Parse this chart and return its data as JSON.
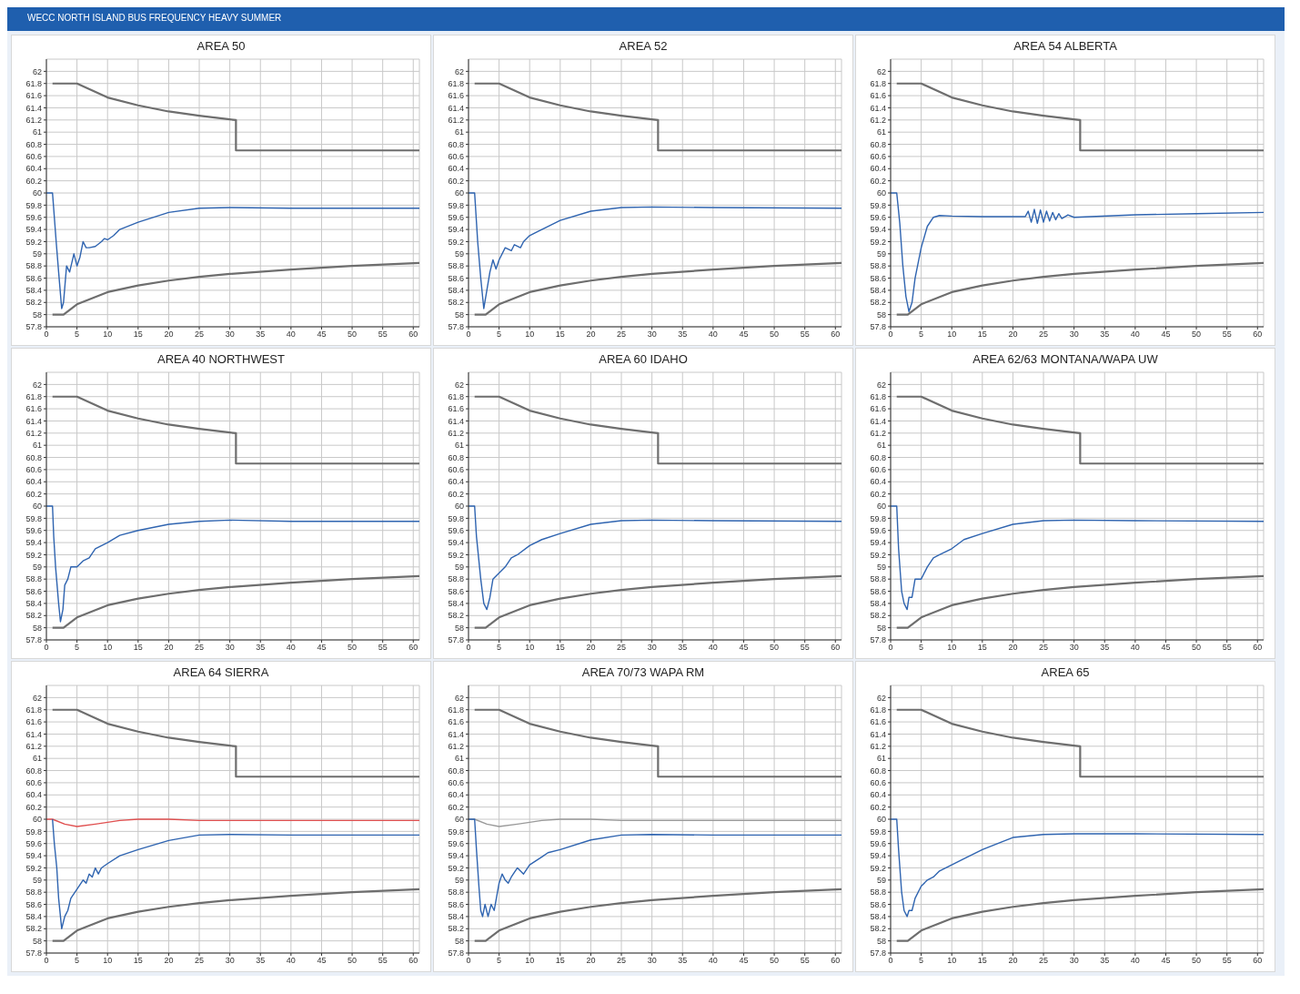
{
  "chart_data": [
    {
      "type": "line",
      "title": "AREA 50",
      "annotations": [
        "WECC NORTH ISLAND BUS FREQUENCY HEAVY SUMMER"
      ],
      "xlim": [
        0,
        61
      ],
      "xticks": [
        0,
        5,
        10,
        15,
        20,
        25,
        30,
        35,
        40,
        45,
        50,
        55,
        60
      ],
      "ylim": [
        57.8,
        62.2
      ],
      "yticks": [
        57.8,
        58,
        58.2,
        58.4,
        58.6,
        58.8,
        59,
        59.2,
        59.4,
        59.6,
        59.8,
        60,
        60.2,
        60.4,
        60.6,
        60.8,
        61,
        61.2,
        61.4,
        61.6,
        61.8,
        62
      ],
      "grid": true,
      "legend": false,
      "marker": "none",
      "line_style": "solid",
      "series": [
        {
          "color": "#6e6e6e",
          "x": [
            1,
            5,
            10,
            15,
            20,
            25,
            30,
            31,
            31,
            61
          ],
          "values": [
            61.8,
            61.8,
            61.57,
            61.44,
            61.34,
            61.27,
            61.21,
            61.2,
            60.7,
            60.7
          ]
        },
        {
          "color": "#6e6e6e",
          "x": [
            1,
            2.8,
            5,
            10,
            15,
            20,
            25,
            30,
            40,
            50,
            61
          ],
          "values": [
            58,
            58,
            58.17,
            58.37,
            58.48,
            58.56,
            58.62,
            58.67,
            58.74,
            58.8,
            58.85
          ]
        },
        {
          "color": "#2f64b0",
          "x": [
            0,
            1,
            1.3,
            1.6,
            2,
            2.5,
            2.8,
            3.3,
            3.8,
            4.5,
            5,
            5.5,
            6,
            6.5,
            7,
            8,
            9,
            9.5,
            10,
            11,
            12,
            15,
            20,
            25,
            30,
            40,
            61
          ],
          "values": [
            60,
            60,
            59.6,
            59.2,
            58.7,
            58.1,
            58.2,
            58.8,
            58.7,
            59,
            58.8,
            58.95,
            59.2,
            59.1,
            59.1,
            59.12,
            59.2,
            59.25,
            59.23,
            59.3,
            59.4,
            59.52,
            59.68,
            59.75,
            59.76,
            59.75,
            59.75
          ]
        }
      ]
    },
    {
      "type": "line",
      "title": "AREA 52",
      "xlim": [
        0,
        61
      ],
      "xticks": [
        0,
        5,
        10,
        15,
        20,
        25,
        30,
        35,
        40,
        45,
        50,
        55,
        60
      ],
      "ylim": [
        57.8,
        62.2
      ],
      "yticks": [
        57.8,
        58,
        58.2,
        58.4,
        58.6,
        58.8,
        59,
        59.2,
        59.4,
        59.6,
        59.8,
        60,
        60.2,
        60.4,
        60.6,
        60.8,
        61,
        61.2,
        61.4,
        61.6,
        61.8,
        62
      ],
      "grid": true,
      "legend": false,
      "marker": "none",
      "line_style": "solid",
      "series": [
        {
          "color": "#6e6e6e",
          "x": [
            1,
            5,
            10,
            15,
            20,
            25,
            30,
            31,
            31,
            61
          ],
          "values": [
            61.8,
            61.8,
            61.57,
            61.44,
            61.34,
            61.27,
            61.21,
            61.2,
            60.7,
            60.7
          ]
        },
        {
          "color": "#6e6e6e",
          "x": [
            1,
            2.8,
            5,
            10,
            15,
            20,
            25,
            30,
            40,
            50,
            61
          ],
          "values": [
            58,
            58,
            58.17,
            58.37,
            58.48,
            58.56,
            58.62,
            58.67,
            58.74,
            58.8,
            58.85
          ]
        },
        {
          "color": "#2f64b0",
          "x": [
            0,
            1,
            1.5,
            2,
            2.5,
            3,
            3.5,
            4,
            4.5,
            5,
            6,
            7,
            7.5,
            8.5,
            9,
            10,
            12,
            15,
            20,
            25,
            30,
            40,
            61
          ],
          "values": [
            60,
            60,
            59.2,
            58.6,
            58.1,
            58.4,
            58.7,
            58.9,
            58.75,
            58.9,
            59.1,
            59.05,
            59.15,
            59.1,
            59.2,
            59.3,
            59.4,
            59.55,
            59.7,
            59.76,
            59.77,
            59.76,
            59.75
          ]
        }
      ]
    },
    {
      "type": "line",
      "title": "AREA 54 ALBERTA",
      "xlim": [
        0,
        61
      ],
      "xticks": [
        0,
        5,
        10,
        15,
        20,
        25,
        30,
        35,
        40,
        45,
        50,
        55,
        60
      ],
      "ylim": [
        57.8,
        62.2
      ],
      "yticks": [
        57.8,
        58,
        58.2,
        58.4,
        58.6,
        58.8,
        59,
        59.2,
        59.4,
        59.6,
        59.8,
        60,
        60.2,
        60.4,
        60.6,
        60.8,
        61,
        61.2,
        61.4,
        61.6,
        61.8,
        62
      ],
      "grid": true,
      "legend": false,
      "marker": "none",
      "line_style": "solid",
      "series": [
        {
          "color": "#6e6e6e",
          "x": [
            1,
            5,
            10,
            15,
            20,
            25,
            30,
            31,
            31,
            61
          ],
          "values": [
            61.8,
            61.8,
            61.57,
            61.44,
            61.34,
            61.27,
            61.21,
            61.2,
            60.7,
            60.7
          ]
        },
        {
          "color": "#6e6e6e",
          "x": [
            1,
            2.8,
            5,
            10,
            15,
            20,
            25,
            30,
            40,
            50,
            61
          ],
          "values": [
            58,
            58,
            58.17,
            58.37,
            58.48,
            58.56,
            58.62,
            58.67,
            58.74,
            58.8,
            58.85
          ]
        },
        {
          "color": "#2f64b0",
          "x": [
            0,
            1,
            1.5,
            2,
            2.5,
            3,
            3.5,
            4,
            5,
            6,
            7,
            8,
            10,
            15,
            20,
            22,
            22.5,
            23,
            23.5,
            24,
            24.5,
            25,
            25.5,
            26,
            26.5,
            27,
            27.5,
            28,
            29,
            30,
            40,
            50,
            61
          ],
          "values": [
            60,
            60,
            59.5,
            58.8,
            58.3,
            58.05,
            58.2,
            58.6,
            59.1,
            59.45,
            59.6,
            59.63,
            59.62,
            59.61,
            59.61,
            59.61,
            59.7,
            59.52,
            59.73,
            59.5,
            59.72,
            59.52,
            59.7,
            59.54,
            59.68,
            59.56,
            59.66,
            59.58,
            59.64,
            59.6,
            59.64,
            59.66,
            59.68
          ]
        }
      ]
    },
    {
      "type": "line",
      "title": "AREA 40 NORTHWEST",
      "xlim": [
        0,
        61
      ],
      "xticks": [
        0,
        5,
        10,
        15,
        20,
        25,
        30,
        35,
        40,
        45,
        50,
        55,
        60
      ],
      "ylim": [
        57.8,
        62.2
      ],
      "yticks": [
        57.8,
        58,
        58.2,
        58.4,
        58.6,
        58.8,
        59,
        59.2,
        59.4,
        59.6,
        59.8,
        60,
        60.2,
        60.4,
        60.6,
        60.8,
        61,
        61.2,
        61.4,
        61.6,
        61.8,
        62
      ],
      "grid": true,
      "legend": false,
      "marker": "none",
      "line_style": "solid",
      "series": [
        {
          "color": "#6e6e6e",
          "x": [
            1,
            5,
            10,
            15,
            20,
            25,
            30,
            31,
            31,
            61
          ],
          "values": [
            61.8,
            61.8,
            61.57,
            61.44,
            61.34,
            61.27,
            61.21,
            61.2,
            60.7,
            60.7
          ]
        },
        {
          "color": "#6e6e6e",
          "x": [
            1,
            2.8,
            5,
            10,
            15,
            20,
            25,
            30,
            40,
            50,
            61
          ],
          "values": [
            58,
            58,
            58.17,
            58.37,
            58.48,
            58.56,
            58.62,
            58.67,
            58.74,
            58.8,
            58.85
          ]
        },
        {
          "color": "#2f64b0",
          "x": [
            0,
            1,
            1.2,
            1.5,
            2,
            2.3,
            2.7,
            3,
            3.5,
            4,
            5,
            6,
            7,
            8,
            10,
            12,
            15,
            20,
            25,
            30,
            40,
            61
          ],
          "values": [
            60,
            60,
            59.5,
            59,
            58.4,
            58.1,
            58.3,
            58.7,
            58.8,
            59,
            59,
            59.1,
            59.15,
            59.3,
            59.4,
            59.52,
            59.6,
            59.7,
            59.75,
            59.77,
            59.75,
            59.75
          ]
        }
      ]
    },
    {
      "type": "line",
      "title": "AREA 60 IDAHO",
      "xlim": [
        0,
        61
      ],
      "xticks": [
        0,
        5,
        10,
        15,
        20,
        25,
        30,
        35,
        40,
        45,
        50,
        55,
        60
      ],
      "ylim": [
        57.8,
        62.2
      ],
      "yticks": [
        57.8,
        58,
        58.2,
        58.4,
        58.6,
        58.8,
        59,
        59.2,
        59.4,
        59.6,
        59.8,
        60,
        60.2,
        60.4,
        60.6,
        60.8,
        61,
        61.2,
        61.4,
        61.6,
        61.8,
        62
      ],
      "grid": true,
      "legend": false,
      "marker": "none",
      "line_style": "solid",
      "series": [
        {
          "color": "#6e6e6e",
          "x": [
            1,
            5,
            10,
            15,
            20,
            25,
            30,
            31,
            31,
            61
          ],
          "values": [
            61.8,
            61.8,
            61.57,
            61.44,
            61.34,
            61.27,
            61.21,
            61.2,
            60.7,
            60.7
          ]
        },
        {
          "color": "#6e6e6e",
          "x": [
            1,
            2.8,
            5,
            10,
            15,
            20,
            25,
            30,
            40,
            50,
            61
          ],
          "values": [
            58,
            58,
            58.17,
            58.37,
            58.48,
            58.56,
            58.62,
            58.67,
            58.74,
            58.8,
            58.85
          ]
        },
        {
          "color": "#2f64b0",
          "x": [
            0,
            1,
            1.3,
            2,
            2.5,
            3,
            3.5,
            4,
            5,
            6,
            7,
            8,
            10,
            12,
            15,
            20,
            25,
            30,
            40,
            61
          ],
          "values": [
            60,
            60,
            59.5,
            58.8,
            58.4,
            58.3,
            58.5,
            58.8,
            58.9,
            59,
            59.15,
            59.2,
            59.35,
            59.45,
            59.55,
            59.7,
            59.76,
            59.77,
            59.76,
            59.75
          ]
        }
      ]
    },
    {
      "type": "line",
      "title": "AREA 62/63 MONTANA/WAPA UW",
      "xlim": [
        0,
        61
      ],
      "xticks": [
        0,
        5,
        10,
        15,
        20,
        25,
        30,
        35,
        40,
        45,
        50,
        55,
        60
      ],
      "ylim": [
        57.8,
        62.2
      ],
      "yticks": [
        57.8,
        58,
        58.2,
        58.4,
        58.6,
        58.8,
        59,
        59.2,
        59.4,
        59.6,
        59.8,
        60,
        60.2,
        60.4,
        60.6,
        60.8,
        61,
        61.2,
        61.4,
        61.6,
        61.8,
        62
      ],
      "grid": true,
      "legend": false,
      "marker": "none",
      "line_style": "solid",
      "series": [
        {
          "color": "#6e6e6e",
          "x": [
            1,
            5,
            10,
            15,
            20,
            25,
            30,
            31,
            31,
            61
          ],
          "values": [
            61.8,
            61.8,
            61.57,
            61.44,
            61.34,
            61.27,
            61.21,
            61.2,
            60.7,
            60.7
          ]
        },
        {
          "color": "#6e6e6e",
          "x": [
            1,
            2.8,
            5,
            10,
            15,
            20,
            25,
            30,
            40,
            50,
            61
          ],
          "values": [
            58,
            58,
            58.17,
            58.37,
            58.48,
            58.56,
            58.62,
            58.67,
            58.74,
            58.8,
            58.85
          ]
        },
        {
          "color": "#2f64b0",
          "x": [
            0,
            1,
            1.3,
            1.8,
            2.2,
            2.7,
            3,
            3.5,
            4,
            5,
            6,
            7,
            8,
            10,
            12,
            15,
            20,
            25,
            30,
            40,
            61
          ],
          "values": [
            60,
            60,
            59.3,
            58.6,
            58.4,
            58.3,
            58.5,
            58.5,
            58.8,
            58.8,
            59,
            59.15,
            59.2,
            59.3,
            59.45,
            59.55,
            59.7,
            59.76,
            59.77,
            59.76,
            59.75
          ]
        }
      ]
    },
    {
      "type": "line",
      "title": "AREA 64 SIERRA",
      "xlim": [
        0,
        61
      ],
      "xticks": [
        0,
        5,
        10,
        15,
        20,
        25,
        30,
        35,
        40,
        45,
        50,
        55,
        60
      ],
      "ylim": [
        57.8,
        62.2
      ],
      "yticks": [
        57.8,
        58,
        58.2,
        58.4,
        58.6,
        58.8,
        59,
        59.2,
        59.4,
        59.6,
        59.8,
        60,
        60.2,
        60.4,
        60.6,
        60.8,
        61,
        61.2,
        61.4,
        61.6,
        61.8,
        62
      ],
      "grid": true,
      "legend": false,
      "marker": "none",
      "line_style": "solid",
      "series": [
        {
          "color": "#6e6e6e",
          "x": [
            1,
            5,
            10,
            15,
            20,
            25,
            30,
            31,
            31,
            61
          ],
          "values": [
            61.8,
            61.8,
            61.57,
            61.44,
            61.34,
            61.27,
            61.21,
            61.2,
            60.7,
            60.7
          ]
        },
        {
          "color": "#6e6e6e",
          "x": [
            1,
            2.8,
            5,
            10,
            15,
            20,
            25,
            30,
            40,
            50,
            61
          ],
          "values": [
            58,
            58,
            58.17,
            58.37,
            58.48,
            58.56,
            58.62,
            58.67,
            58.74,
            58.8,
            58.85
          ]
        },
        {
          "color": "#e05050",
          "x": [
            0,
            1,
            3,
            5,
            8,
            12,
            15,
            20,
            25,
            61
          ],
          "values": [
            60,
            60,
            59.92,
            59.88,
            59.92,
            59.98,
            60,
            60,
            59.98,
            59.98
          ]
        },
        {
          "color": "#2f64b0",
          "x": [
            1,
            1.3,
            1.7,
            2,
            2.5,
            3,
            3.5,
            4,
            5,
            6,
            6.5,
            7,
            7.5,
            8,
            8.5,
            9,
            10,
            12,
            15,
            20,
            25,
            30,
            40,
            61
          ],
          "values": [
            60,
            59.6,
            59.2,
            58.7,
            58.2,
            58.4,
            58.5,
            58.7,
            58.85,
            59,
            58.95,
            59.1,
            59.05,
            59.2,
            59.1,
            59.2,
            59.27,
            59.4,
            59.5,
            59.65,
            59.74,
            59.75,
            59.74,
            59.74
          ]
        }
      ]
    },
    {
      "type": "line",
      "title": "AREA 70/73 WAPA RM",
      "xlim": [
        0,
        61
      ],
      "xticks": [
        0,
        5,
        10,
        15,
        20,
        25,
        30,
        35,
        40,
        45,
        50,
        55,
        60
      ],
      "ylim": [
        57.8,
        62.2
      ],
      "yticks": [
        57.8,
        58,
        58.2,
        58.4,
        58.6,
        58.8,
        59,
        59.2,
        59.4,
        59.6,
        59.8,
        60,
        60.2,
        60.4,
        60.6,
        60.8,
        61,
        61.2,
        61.4,
        61.6,
        61.8,
        62
      ],
      "grid": true,
      "legend": false,
      "marker": "none",
      "line_style": "solid",
      "series": [
        {
          "color": "#6e6e6e",
          "x": [
            1,
            5,
            10,
            15,
            20,
            25,
            30,
            31,
            31,
            61
          ],
          "values": [
            61.8,
            61.8,
            61.57,
            61.44,
            61.34,
            61.27,
            61.21,
            61.2,
            60.7,
            60.7
          ]
        },
        {
          "color": "#6e6e6e",
          "x": [
            1,
            2.8,
            5,
            10,
            15,
            20,
            25,
            30,
            40,
            50,
            61
          ],
          "values": [
            58,
            58,
            58.17,
            58.37,
            58.48,
            58.56,
            58.62,
            58.67,
            58.74,
            58.8,
            58.85
          ]
        },
        {
          "color": "#9a9a9a",
          "x": [
            0,
            1,
            3,
            5,
            8,
            12,
            15,
            20,
            25,
            61
          ],
          "values": [
            60,
            60,
            59.92,
            59.88,
            59.92,
            59.98,
            60,
            60,
            59.98,
            59.98
          ]
        },
        {
          "color": "#2f64b0",
          "x": [
            0,
            1,
            1.3,
            1.7,
            2,
            2.3,
            2.7,
            3.2,
            3.7,
            4.2,
            5,
            5.5,
            6,
            6.5,
            7,
            8,
            9,
            10,
            12,
            13,
            15,
            20,
            25,
            30,
            40,
            61
          ],
          "values": [
            60,
            60,
            59.5,
            58.9,
            58.5,
            58.4,
            58.6,
            58.4,
            58.6,
            58.5,
            58.95,
            59.1,
            59,
            58.95,
            59.05,
            59.2,
            59.1,
            59.25,
            59.38,
            59.45,
            59.5,
            59.66,
            59.74,
            59.75,
            59.74,
            59.74
          ]
        }
      ]
    },
    {
      "type": "line",
      "title": "AREA 65",
      "xlim": [
        0,
        61
      ],
      "xticks": [
        0,
        5,
        10,
        15,
        20,
        25,
        30,
        35,
        40,
        45,
        50,
        55,
        60
      ],
      "ylim": [
        57.8,
        62.2
      ],
      "yticks": [
        57.8,
        58,
        58.2,
        58.4,
        58.6,
        58.8,
        59,
        59.2,
        59.4,
        59.6,
        59.8,
        60,
        60.2,
        60.4,
        60.6,
        60.8,
        61,
        61.2,
        61.4,
        61.6,
        61.8,
        62
      ],
      "grid": true,
      "legend": false,
      "marker": "none",
      "line_style": "solid",
      "series": [
        {
          "color": "#6e6e6e",
          "x": [
            1,
            5,
            10,
            15,
            20,
            25,
            30,
            31,
            31,
            61
          ],
          "values": [
            61.8,
            61.8,
            61.57,
            61.44,
            61.34,
            61.27,
            61.21,
            61.2,
            60.7,
            60.7
          ]
        },
        {
          "color": "#6e6e6e",
          "x": [
            1,
            2.8,
            5,
            10,
            15,
            20,
            25,
            30,
            40,
            50,
            61
          ],
          "values": [
            58,
            58,
            58.17,
            58.37,
            58.48,
            58.56,
            58.62,
            58.67,
            58.74,
            58.8,
            58.85
          ]
        },
        {
          "color": "#2f64b0",
          "x": [
            0,
            1,
            1.3,
            1.8,
            2.2,
            2.7,
            3,
            3.5,
            4,
            5,
            6,
            7,
            8,
            10,
            12,
            15,
            18,
            20,
            25,
            30,
            40,
            61
          ],
          "values": [
            60,
            60,
            59.5,
            58.8,
            58.5,
            58.4,
            58.5,
            58.5,
            58.7,
            58.9,
            59,
            59.05,
            59.15,
            59.25,
            59.35,
            59.5,
            59.62,
            59.7,
            59.75,
            59.76,
            59.76,
            59.75
          ]
        }
      ]
    }
  ]
}
